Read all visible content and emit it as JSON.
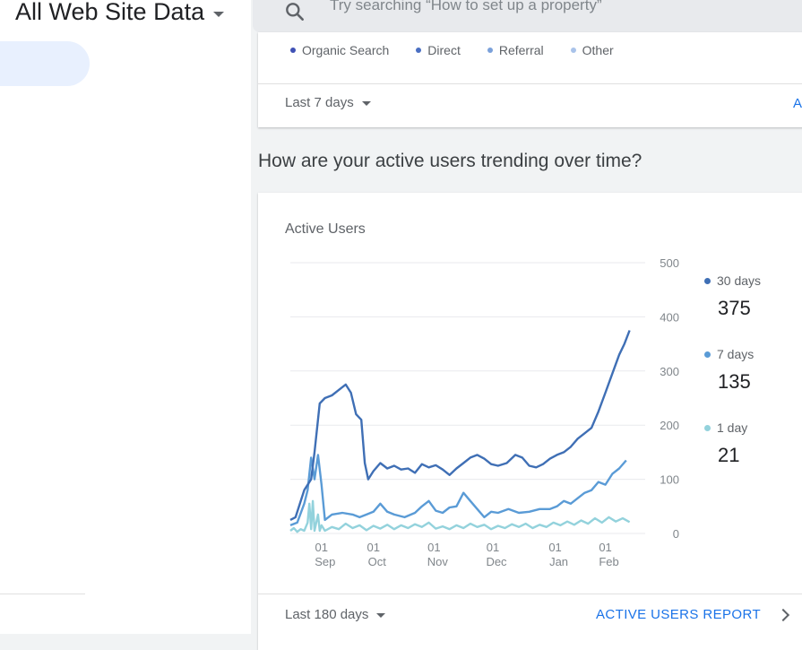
{
  "header": {
    "property_title": "All Web Site Data",
    "search_placeholder": "Try searching “How to set up a property”"
  },
  "traffic_card": {
    "legend": [
      {
        "label": "Organic Search",
        "color": "#3f51b5"
      },
      {
        "label": "Direct",
        "color": "#4a6fc2"
      },
      {
        "label": "Referral",
        "color": "#7ba1da"
      },
      {
        "label": "Other",
        "color": "#a9c3ea"
      }
    ],
    "date_range": "Last 7 days",
    "link_fragment": "A"
  },
  "section_heading": "How are your active users trending over time?",
  "active_users_card": {
    "title": "Active Users",
    "metrics": [
      {
        "label": "30 days",
        "value": "375",
        "color": "#3f6fb5"
      },
      {
        "label": "7 days",
        "value": "135",
        "color": "#5a9bd6"
      },
      {
        "label": "1 day",
        "value": "21",
        "color": "#93d2dc"
      }
    ],
    "date_range": "Last 180 days",
    "report_link": "ACTIVE USERS REPORT"
  },
  "chart_data": {
    "type": "line",
    "title": "Active Users",
    "ylim": [
      0,
      500
    ],
    "yticks": [
      "0",
      "100",
      "200",
      "300",
      "400",
      "500"
    ],
    "xticks": [
      {
        "day": "01",
        "month": "Sep"
      },
      {
        "day": "01",
        "month": "Oct"
      },
      {
        "day": "01",
        "month": "Nov"
      },
      {
        "day": "01",
        "month": "Dec"
      },
      {
        "day": "01",
        "month": "Jan"
      },
      {
        "day": "01",
        "month": "Feb"
      }
    ],
    "xtick_positions": [
      18,
      48,
      83,
      117,
      153,
      182
    ],
    "x_count": 205,
    "series": [
      {
        "name": "30 days",
        "color": "#3f6fb5",
        "points": [
          [
            0,
            25
          ],
          [
            3,
            30
          ],
          [
            8,
            80
          ],
          [
            12,
            100
          ],
          [
            14,
            150
          ],
          [
            17,
            240
          ],
          [
            20,
            250
          ],
          [
            24,
            255
          ],
          [
            28,
            265
          ],
          [
            32,
            275
          ],
          [
            35,
            260
          ],
          [
            38,
            220
          ],
          [
            41,
            210
          ],
          [
            43,
            130
          ],
          [
            45,
            100
          ],
          [
            48,
            115
          ],
          [
            52,
            130
          ],
          [
            56,
            120
          ],
          [
            60,
            125
          ],
          [
            64,
            118
          ],
          [
            68,
            120
          ],
          [
            72,
            112
          ],
          [
            76,
            128
          ],
          [
            80,
            122
          ],
          [
            84,
            126
          ],
          [
            88,
            118
          ],
          [
            92,
            108
          ],
          [
            96,
            120
          ],
          [
            100,
            130
          ],
          [
            104,
            140
          ],
          [
            108,
            145
          ],
          [
            112,
            138
          ],
          [
            116,
            128
          ],
          [
            120,
            125
          ],
          [
            125,
            130
          ],
          [
            130,
            145
          ],
          [
            134,
            140
          ],
          [
            138,
            125
          ],
          [
            142,
            122
          ],
          [
            146,
            128
          ],
          [
            150,
            138
          ],
          [
            154,
            145
          ],
          [
            158,
            150
          ],
          [
            162,
            160
          ],
          [
            166,
            175
          ],
          [
            170,
            185
          ],
          [
            174,
            195
          ],
          [
            178,
            225
          ],
          [
            182,
            260
          ],
          [
            186,
            295
          ],
          [
            190,
            330
          ],
          [
            193,
            350
          ],
          [
            196,
            375
          ]
        ]
      },
      {
        "name": "7 days",
        "color": "#5a9bd6",
        "points": [
          [
            0,
            15
          ],
          [
            4,
            20
          ],
          [
            8,
            55
          ],
          [
            10,
            80
          ],
          [
            12,
            140
          ],
          [
            14,
            100
          ],
          [
            16,
            145
          ],
          [
            18,
            90
          ],
          [
            20,
            25
          ],
          [
            24,
            35
          ],
          [
            30,
            38
          ],
          [
            36,
            35
          ],
          [
            40,
            30
          ],
          [
            44,
            35
          ],
          [
            48,
            40
          ],
          [
            52,
            55
          ],
          [
            56,
            40
          ],
          [
            60,
            35
          ],
          [
            66,
            30
          ],
          [
            72,
            38
          ],
          [
            76,
            50
          ],
          [
            80,
            60
          ],
          [
            84,
            42
          ],
          [
            88,
            38
          ],
          [
            92,
            48
          ],
          [
            96,
            50
          ],
          [
            100,
            75
          ],
          [
            104,
            60
          ],
          [
            108,
            45
          ],
          [
            112,
            30
          ],
          [
            116,
            40
          ],
          [
            120,
            38
          ],
          [
            126,
            45
          ],
          [
            132,
            38
          ],
          [
            138,
            40
          ],
          [
            144,
            45
          ],
          [
            150,
            45
          ],
          [
            154,
            50
          ],
          [
            158,
            60
          ],
          [
            162,
            55
          ],
          [
            166,
            65
          ],
          [
            170,
            75
          ],
          [
            174,
            80
          ],
          [
            178,
            95
          ],
          [
            182,
            90
          ],
          [
            186,
            110
          ],
          [
            190,
            120
          ],
          [
            194,
            135
          ]
        ]
      },
      {
        "name": "1 day",
        "color": "#93d2dc",
        "points": [
          [
            0,
            5
          ],
          [
            2,
            10
          ],
          [
            4,
            3
          ],
          [
            6,
            8
          ],
          [
            8,
            5
          ],
          [
            10,
            20
          ],
          [
            11,
            55
          ],
          [
            12,
            8
          ],
          [
            13,
            60
          ],
          [
            14,
            5
          ],
          [
            16,
            35
          ],
          [
            17,
            5
          ],
          [
            18,
            15
          ],
          [
            20,
            5
          ],
          [
            24,
            12
          ],
          [
            28,
            8
          ],
          [
            32,
            18
          ],
          [
            36,
            10
          ],
          [
            40,
            15
          ],
          [
            44,
            6
          ],
          [
            48,
            14
          ],
          [
            52,
            9
          ],
          [
            56,
            16
          ],
          [
            60,
            8
          ],
          [
            64,
            15
          ],
          [
            68,
            10
          ],
          [
            72,
            17
          ],
          [
            76,
            12
          ],
          [
            80,
            20
          ],
          [
            84,
            9
          ],
          [
            88,
            13
          ],
          [
            92,
            8
          ],
          [
            96,
            15
          ],
          [
            100,
            10
          ],
          [
            104,
            18
          ],
          [
            108,
            12
          ],
          [
            112,
            16
          ],
          [
            116,
            8
          ],
          [
            120,
            14
          ],
          [
            124,
            10
          ],
          [
            128,
            17
          ],
          [
            132,
            12
          ],
          [
            136,
            18
          ],
          [
            140,
            10
          ],
          [
            144,
            16
          ],
          [
            148,
            12
          ],
          [
            152,
            20
          ],
          [
            156,
            15
          ],
          [
            160,
            22
          ],
          [
            164,
            16
          ],
          [
            168,
            24
          ],
          [
            172,
            18
          ],
          [
            176,
            28
          ],
          [
            180,
            20
          ],
          [
            184,
            30
          ],
          [
            188,
            22
          ],
          [
            192,
            28
          ],
          [
            196,
            21
          ]
        ]
      }
    ]
  }
}
